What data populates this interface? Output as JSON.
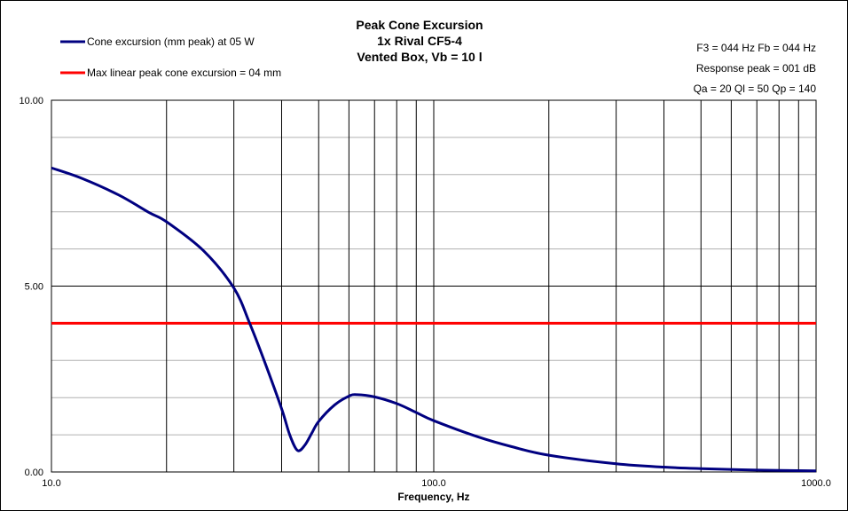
{
  "chart_data": {
    "type": "line",
    "title": [
      "Peak Cone Excursion",
      "1x Rival CF5-4",
      "Vented Box, Vb = 10 l"
    ],
    "xlabel": "Frequency, Hz",
    "ylabel": "",
    "xscale": "log",
    "xlim": [
      10,
      1000
    ],
    "ylim": [
      0,
      10
    ],
    "x_tick_labels": [
      "10.0",
      "100.0",
      "1000.0"
    ],
    "y_tick_labels": [
      "0.00",
      "5.00",
      "10.00"
    ],
    "y_ticks": [
      0,
      5,
      10
    ],
    "x_grid": [
      10,
      20,
      30,
      40,
      50,
      60,
      70,
      80,
      90,
      100,
      200,
      300,
      400,
      500,
      600,
      700,
      800,
      900,
      1000
    ],
    "y_minor_grid": [
      1,
      2,
      3,
      4,
      6,
      7,
      8,
      9
    ],
    "legend_placement": "top-left",
    "series": [
      {
        "name": "Cone excursion (mm peak) at 05 W",
        "color": "#000080",
        "x": [
          10,
          12,
          15,
          18,
          20,
          25,
          30,
          33,
          36,
          40,
          42,
          44,
          46,
          48,
          50,
          55,
          60,
          63,
          70,
          80,
          90,
          100,
          130,
          160,
          200,
          300,
          400,
          500,
          700,
          1000
        ],
        "y": [
          8.18,
          7.9,
          7.45,
          6.98,
          6.73,
          5.95,
          4.95,
          4.0,
          3.0,
          1.7,
          1.0,
          0.58,
          0.72,
          1.05,
          1.36,
          1.8,
          2.04,
          2.08,
          2.02,
          1.84,
          1.6,
          1.38,
          0.95,
          0.68,
          0.45,
          0.22,
          0.13,
          0.09,
          0.05,
          0.03
        ]
      },
      {
        "name": "Max linear peak cone excursion = 04 mm",
        "color": "#ff0000",
        "x": [
          10,
          1000
        ],
        "y": [
          4,
          4
        ]
      }
    ],
    "annotations": [
      "F3 = 044 Hz  Fb = 044 Hz",
      "Response  peak = 001 dB",
      "Qa = 20  Ql = 50  Qp = 140"
    ]
  }
}
